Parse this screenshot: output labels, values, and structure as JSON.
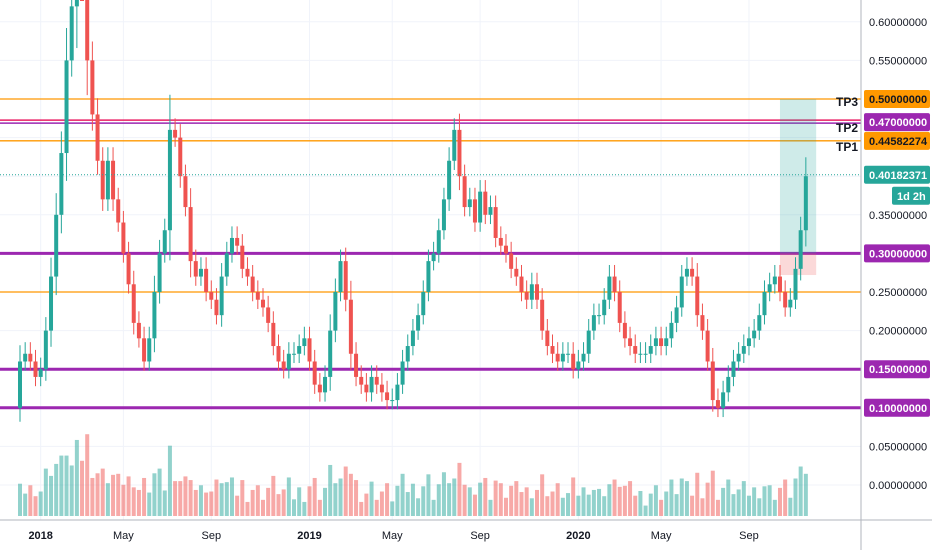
{
  "chart_data": {
    "type": "candlestick",
    "price_axis": {
      "range": [
        -0.06,
        0.64
      ],
      "ticks": [
        "0.60000000",
        "0.55000000",
        "0.50000000",
        "0.45000000",
        "0.40000000",
        "0.35000000",
        "0.30000000",
        "0.25000000",
        "0.20000000",
        "0.15000000",
        "0.10000000",
        "0.05000000",
        "0.00000000"
      ],
      "tick_values": [
        0.6,
        0.55,
        0.5,
        0.45,
        0.4,
        0.35,
        0.3,
        0.25,
        0.2,
        0.15,
        0.1,
        0.05,
        0.0
      ]
    },
    "time_axis": {
      "labels": [
        "2018",
        "May",
        "Sep",
        "2019",
        "May",
        "Sep",
        "2020",
        "May",
        "Sep"
      ],
      "label_weeks": [
        4,
        20,
        37,
        56,
        72,
        89,
        108,
        124,
        141
      ]
    },
    "horizontal_levels": [
      {
        "value": 0.5,
        "color": "#ff9800",
        "style": "thin"
      },
      {
        "value": 0.47,
        "color": "#e91e63",
        "style": "double"
      },
      {
        "value": 0.44582274,
        "color": "#ff9800",
        "style": "thin"
      },
      {
        "value": 0.3,
        "color": "#9c27b0",
        "style": "thick"
      },
      {
        "value": 0.25,
        "color": "#ff9800",
        "style": "thin"
      },
      {
        "value": 0.15,
        "color": "#9c27b0",
        "style": "thick"
      },
      {
        "value": 0.1,
        "color": "#9c27b0",
        "style": "thick"
      }
    ],
    "current_price": {
      "value": 0.40182371,
      "label": "0.40182371",
      "countdown": "1d 2h"
    },
    "price_tags": [
      {
        "label": "0.50000000",
        "value": 0.5,
        "bg": "#ff9800",
        "fg": "#131722"
      },
      {
        "label": "0.47000000",
        "value": 0.47,
        "bg": "#9c27b0",
        "fg": "#ffffff"
      },
      {
        "label": "0.44582274",
        "value": 0.44582274,
        "bg": "#ff9800",
        "fg": "#131722"
      },
      {
        "label": "0.30000000",
        "value": 0.3,
        "bg": "#9c27b0",
        "fg": "#ffffff"
      },
      {
        "label": "0.15000000",
        "value": 0.15,
        "bg": "#9c27b0",
        "fg": "#ffffff"
      },
      {
        "label": "0.10000000",
        "value": 0.1,
        "bg": "#9c27b0",
        "fg": "#ffffff"
      }
    ],
    "targets": [
      {
        "label": "TP3",
        "value": 0.5
      },
      {
        "label": "TP2",
        "value": 0.47
      },
      {
        "label": "TP1",
        "value": 0.44582274
      }
    ],
    "position": {
      "entry": 0.3,
      "target": 0.5,
      "stop": 0.272,
      "start_week": 147,
      "end_week": 154
    },
    "series": [
      {
        "name": "weekly OHLC",
        "closes": [
          0.16,
          0.17,
          0.16,
          0.14,
          0.15,
          0.2,
          0.27,
          0.35,
          0.43,
          0.55,
          0.62,
          0.8,
          0.7,
          0.55,
          0.48,
          0.42,
          0.37,
          0.42,
          0.37,
          0.34,
          0.3,
          0.26,
          0.21,
          0.19,
          0.16,
          0.19,
          0.25,
          0.3,
          0.33,
          0.46,
          0.45,
          0.4,
          0.36,
          0.29,
          0.27,
          0.28,
          0.25,
          0.24,
          0.22,
          0.27,
          0.3,
          0.32,
          0.31,
          0.28,
          0.27,
          0.25,
          0.24,
          0.23,
          0.21,
          0.18,
          0.16,
          0.15,
          0.17,
          0.17,
          0.18,
          0.19,
          0.16,
          0.13,
          0.12,
          0.14,
          0.2,
          0.25,
          0.29,
          0.24,
          0.17,
          0.14,
          0.13,
          0.12,
          0.14,
          0.13,
          0.12,
          0.11,
          0.11,
          0.13,
          0.16,
          0.18,
          0.2,
          0.22,
          0.25,
          0.29,
          0.3,
          0.33,
          0.37,
          0.42,
          0.46,
          0.4,
          0.36,
          0.37,
          0.34,
          0.38,
          0.35,
          0.36,
          0.32,
          0.31,
          0.3,
          0.28,
          0.27,
          0.25,
          0.24,
          0.26,
          0.24,
          0.2,
          0.18,
          0.17,
          0.16,
          0.17,
          0.17,
          0.15,
          0.16,
          0.17,
          0.2,
          0.22,
          0.22,
          0.24,
          0.27,
          0.25,
          0.21,
          0.19,
          0.18,
          0.17,
          0.17,
          0.17,
          0.18,
          0.19,
          0.18,
          0.19,
          0.21,
          0.23,
          0.27,
          0.28,
          0.27,
          0.22,
          0.2,
          0.16,
          0.11,
          0.1,
          0.12,
          0.14,
          0.16,
          0.17,
          0.18,
          0.19,
          0.2,
          0.22,
          0.25,
          0.26,
          0.27,
          0.25,
          0.23,
          0.24,
          0.28,
          0.33,
          0.4
        ]
      }
    ],
    "volume_scale": {
      "max": 0.12
    }
  }
}
